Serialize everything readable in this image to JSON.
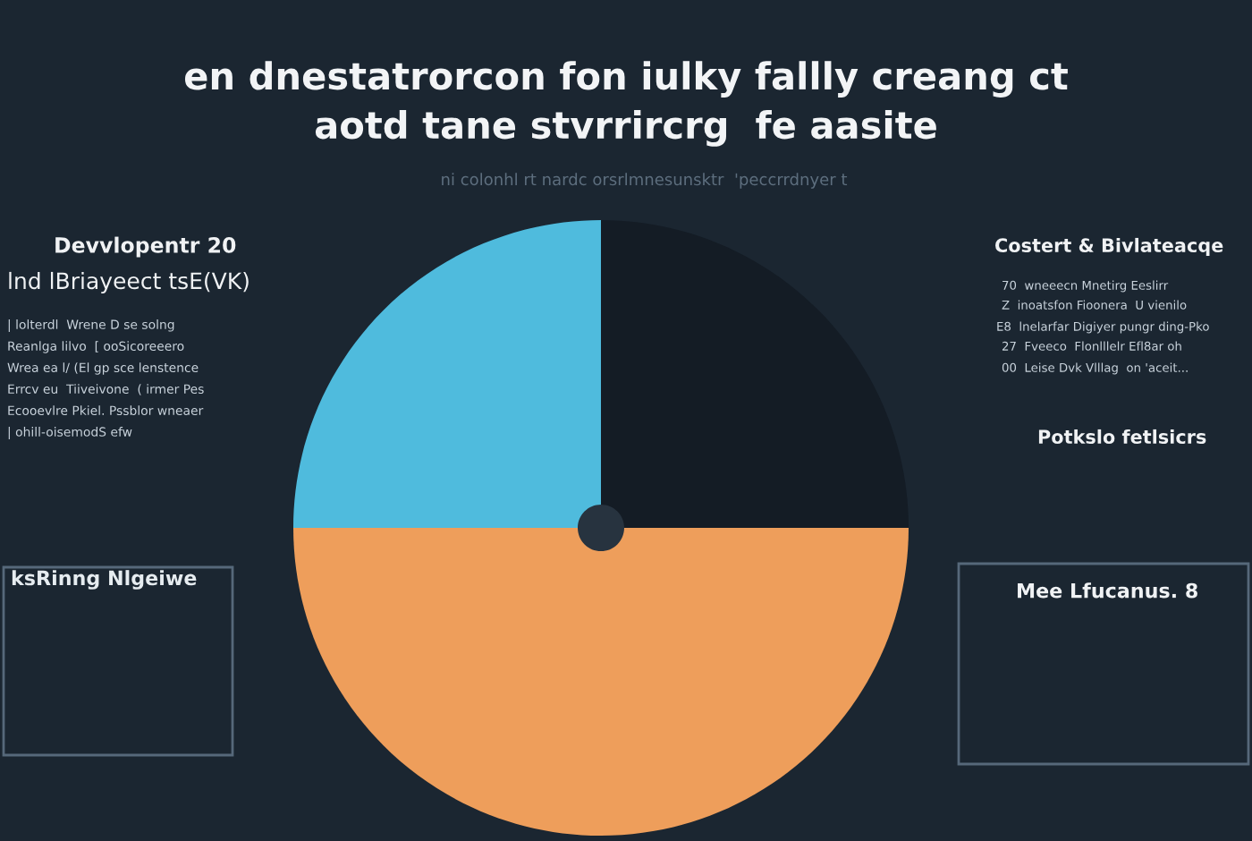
{
  "chart_data": {
    "type": "pie",
    "title": "en dnestatrorcon fon iulky fallly creang ct\naotd tane stvrrircrg  fe aasite",
    "subtitle": "ni colonhl rt nardc orsrlmnesunsktr  'peccrrdnyer t",
    "categories": [
      null,
      null,
      null
    ],
    "values": [
      25,
      50,
      25
    ],
    "colors": [
      "#141c25",
      "#ee9e5b",
      "#4fbbdd"
    ],
    "annotations": [
      "Devvlopentr 20",
      "lnd lBriayeect tsE(VK)",
      "| lolterdl  Wrene D se solng",
      "Reanlga lilvo  [ ooSicoreeero",
      "Wrea ea l/ (El gp sce lenstence",
      "Errcv eu  Tiiveivone  ( irmer Pes",
      "Ecooevlre Pkiel. Pssblor wneaer",
      "| ohill-oisemodS efw",
      "ksRinng Nlgeiwe",
      "Costert & Bivlateacqe",
      "70  wneeecn Mnetirg Eeslirr",
      "Z  inoatsfon Fioonera  U vienilo",
      "E8  lnelarfar Digiyer pungr ding-Pko",
      "27  Fveeco  Flonlllelr Efl8ar oh",
      "00  Leise Dvk Vlllag  on 'aceit...",
      "Potkslo fetlsicrs",
      "Mee Lfucanus. 8"
    ]
  }
}
